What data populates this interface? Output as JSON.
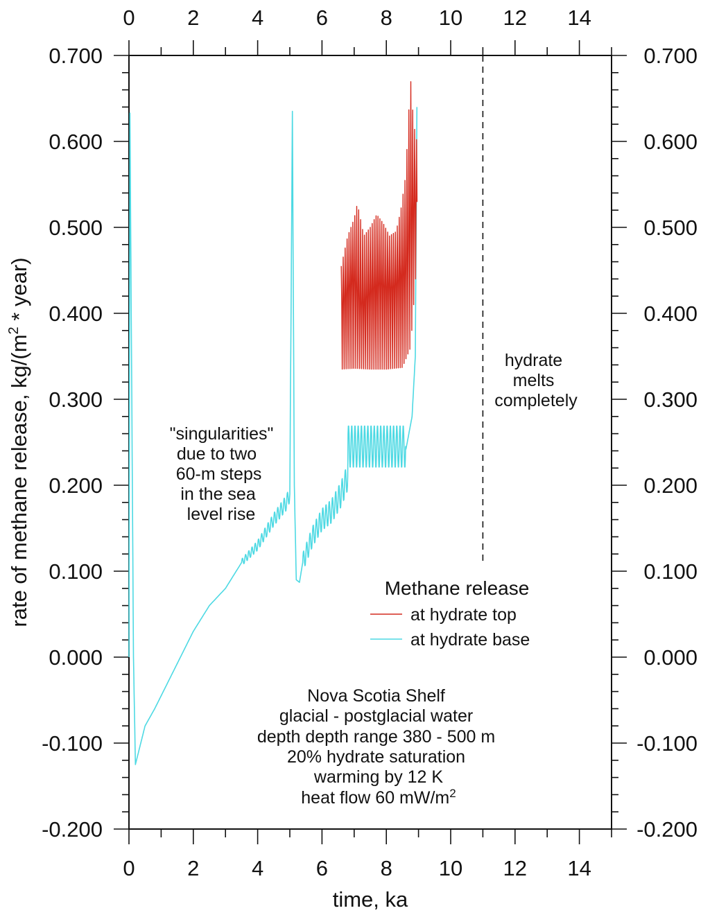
{
  "chart_data": {
    "type": "line",
    "title": "",
    "xlabel": "time, ka",
    "ylabel_main": "rate of methane release, kg/(m",
    "ylabel_sup": "2",
    "ylabel_tail": " * year)",
    "xlim": [
      0,
      15
    ],
    "ylim": [
      -0.2,
      0.7
    ],
    "x_tick_labels": [
      "0",
      "2",
      "4",
      "6",
      "8",
      "10",
      "12",
      "14"
    ],
    "x_tick_values": [
      0,
      2,
      4,
      6,
      8,
      10,
      12,
      14
    ],
    "y_tick_labels": [
      "-0.200",
      "-0.100",
      "0.000",
      "0.100",
      "0.200",
      "0.300",
      "0.400",
      "0.500",
      "0.600",
      "0.700"
    ],
    "y_tick_values": [
      -0.2,
      -0.1,
      0.0,
      0.1,
      0.2,
      0.3,
      0.4,
      0.5,
      0.6,
      0.7
    ],
    "legend_title": "Methane release",
    "series": [
      {
        "name": "at hydrate top",
        "color": "#d42a1e",
        "description": "oscillating between about 0.335 and 0.53 from 6.6 to 8.9 ka, rising to 0.675 near 8.8 ka",
        "x_range": [
          6.6,
          8.95
        ],
        "lower_envelope": [
          [
            6.6,
            0.335
          ],
          [
            7.0,
            0.336
          ],
          [
            7.5,
            0.335
          ],
          [
            8.0,
            0.335
          ],
          [
            8.5,
            0.337
          ],
          [
            8.75,
            0.36
          ],
          [
            8.95,
            0.46
          ]
        ],
        "upper_envelope": [
          [
            6.6,
            0.455
          ],
          [
            6.8,
            0.49
          ],
          [
            7.0,
            0.51
          ],
          [
            7.1,
            0.528
          ],
          [
            7.3,
            0.49
          ],
          [
            7.5,
            0.5
          ],
          [
            7.7,
            0.515
          ],
          [
            7.9,
            0.505
          ],
          [
            8.1,
            0.49
          ],
          [
            8.3,
            0.495
          ],
          [
            8.45,
            0.52
          ],
          [
            8.6,
            0.56
          ],
          [
            8.75,
            0.675
          ],
          [
            8.85,
            0.62
          ],
          [
            8.95,
            0.6
          ]
        ],
        "mean_curve": [
          [
            6.6,
            0.41
          ],
          [
            6.8,
            0.43
          ],
          [
            7.0,
            0.44
          ],
          [
            7.2,
            0.41
          ],
          [
            7.4,
            0.42
          ],
          [
            7.6,
            0.43
          ],
          [
            7.8,
            0.435
          ],
          [
            8.0,
            0.43
          ],
          [
            8.2,
            0.43
          ],
          [
            8.4,
            0.44
          ],
          [
            8.6,
            0.45
          ],
          [
            8.75,
            0.52
          ],
          [
            8.95,
            0.53
          ]
        ]
      },
      {
        "name": "at hydrate base",
        "color": "#4dd9e3",
        "description": "spike at 0, dip to -0.125, linear rise to 0.2 near 5 ka, spike to 0.635 at 5.1 ka, dip to 0.087, rise to plateau ~0.24 with oscillations, spike to 0.64 near 8.95 ka",
        "points": [
          [
            0.0,
            0.0
          ],
          [
            0.03,
            0.633
          ],
          [
            0.08,
            0.35
          ],
          [
            0.14,
            0.0
          ],
          [
            0.2,
            -0.125
          ],
          [
            0.3,
            -0.11
          ],
          [
            0.5,
            -0.08
          ],
          [
            0.8,
            -0.06
          ],
          [
            1.2,
            -0.03
          ],
          [
            1.6,
            0.0
          ],
          [
            2.0,
            0.03
          ],
          [
            2.5,
            0.06
          ],
          [
            3.0,
            0.08
          ],
          [
            3.5,
            0.11
          ],
          [
            4.0,
            0.13
          ],
          [
            4.5,
            0.16
          ],
          [
            4.9,
            0.18
          ],
          [
            5.0,
            0.19
          ],
          [
            5.08,
            0.635
          ],
          [
            5.14,
            0.2
          ],
          [
            5.2,
            0.09
          ],
          [
            5.3,
            0.087
          ],
          [
            5.4,
            0.11
          ],
          [
            5.7,
            0.14
          ],
          [
            6.0,
            0.16
          ],
          [
            6.3,
            0.17
          ],
          [
            6.6,
            0.19
          ],
          [
            6.8,
            0.21
          ],
          [
            7.0,
            0.23
          ],
          [
            7.3,
            0.24
          ],
          [
            7.6,
            0.24
          ],
          [
            8.0,
            0.235
          ],
          [
            8.4,
            0.235
          ],
          [
            8.6,
            0.24
          ],
          [
            8.7,
            0.26
          ],
          [
            8.8,
            0.28
          ],
          [
            8.9,
            0.35
          ],
          [
            8.95,
            0.64
          ]
        ],
        "osc_range": [
          3.5,
          8.6
        ],
        "plateau_envelope": {
          "x_range": [
            6.8,
            8.6
          ],
          "low": 0.22,
          "high": 0.27
        }
      }
    ],
    "annotations": {
      "singularities": [
        "\"singularities\"",
        "due to two",
        "60-m steps",
        "in the sea",
        "level rise"
      ],
      "hydrate_melts": [
        "hydrate",
        "melts",
        "completely"
      ],
      "dashed_line_x": 11.0,
      "dashed_line_y_range": [
        0.11,
        0.7
      ],
      "info": [
        "Nova Scotia Shelf",
        "glacial - postglacial water",
        "depth depth range 380 - 500 m",
        "20% hydrate saturation",
        "warming by 12 K"
      ],
      "info_last_main": "heat flow 60 mW/m",
      "info_last_sup": "2"
    }
  }
}
